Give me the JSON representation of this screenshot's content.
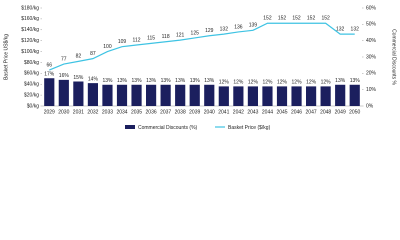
{
  "chart_data": {
    "type": "bar-line",
    "categories": [
      "2029",
      "2030",
      "2031",
      "2032",
      "2033",
      "2034",
      "2035",
      "2036",
      "2037",
      "2038",
      "2039",
      "2040",
      "2041",
      "2042",
      "2043",
      "2044",
      "2045",
      "2046",
      "2047",
      "2048",
      "2049",
      "2050"
    ],
    "series": [
      {
        "name": "Commercial Discounts (%)",
        "type": "bar",
        "axis": "y2",
        "color": "#1b1f5e",
        "values": [
          17,
          16,
          15,
          14,
          13,
          13,
          13,
          13,
          13,
          13,
          13,
          13,
          12,
          12,
          12,
          12,
          12,
          12,
          12,
          12,
          13,
          13
        ],
        "value_labels": [
          "17%",
          "16%",
          "15%",
          "14%",
          "13%",
          "13%",
          "13%",
          "13%",
          "13%",
          "13%",
          "13%",
          "13%",
          "12%",
          "12%",
          "12%",
          "12%",
          "12%",
          "12%",
          "12%",
          "12%",
          "13%",
          "13%"
        ]
      },
      {
        "name": "Basket Price ($/kg)",
        "type": "line",
        "axis": "y",
        "color": "#3ec3e3",
        "values": [
          66,
          77,
          82,
          87,
          100,
          109,
          112,
          115,
          118,
          121,
          125,
          129,
          132,
          136,
          139,
          152,
          152,
          152,
          152,
          152,
          132,
          132
        ]
      }
    ],
    "ylabel": "Basket Price US$/kg",
    "y2label": "Commercial Discounts %",
    "ylim": [
      0,
      180
    ],
    "yticks": [
      {
        "value": 0,
        "label": "$0/kg"
      },
      {
        "value": 20,
        "label": "$20/kg"
      },
      {
        "value": 40,
        "label": "$40/kg"
      },
      {
        "value": 60,
        "label": "$60/kg"
      },
      {
        "value": 80,
        "label": "$80/kg"
      },
      {
        "value": 100,
        "label": "$100/kg"
      },
      {
        "value": 120,
        "label": "$120/kg"
      },
      {
        "value": 140,
        "label": "$140/kg"
      },
      {
        "value": 160,
        "label": "$160/kg"
      },
      {
        "value": 180,
        "label": "$180/kg"
      }
    ],
    "y2lim": [
      0,
      60
    ],
    "y2ticks": [
      {
        "value": 0,
        "label": "0%"
      },
      {
        "value": 10,
        "label": "10%"
      },
      {
        "value": 20,
        "label": "20%"
      },
      {
        "value": 30,
        "label": "30%"
      },
      {
        "value": 40,
        "label": "40%"
      },
      {
        "value": 50,
        "label": "50%"
      },
      {
        "value": 60,
        "label": "60%"
      }
    ],
    "grid": false,
    "legend": "bottom"
  }
}
